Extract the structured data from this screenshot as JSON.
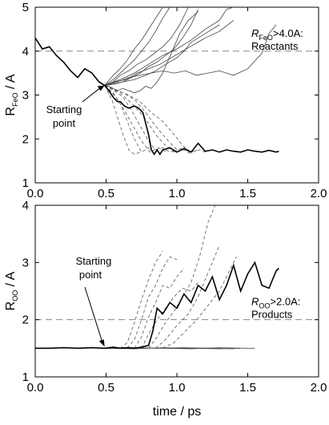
{
  "chart_data": [
    {
      "type": "line",
      "panel": "top",
      "xlabel": "",
      "ylabel": "R_FeO / A",
      "ylabel_main": "R",
      "ylabel_sub": "FeO",
      "ylabel_unit": " / A",
      "xlim": [
        0.0,
        2.0
      ],
      "ylim": [
        1,
        5
      ],
      "xticks": [
        0.0,
        0.5,
        1.0,
        1.5,
        2.0
      ],
      "xtick_labels": [
        "0.0",
        "0.5",
        "1.0",
        "1.5",
        "2.0"
      ],
      "yticks": [
        1,
        2,
        3,
        4,
        5
      ],
      "ytick_labels": [
        "1",
        "2",
        "3",
        "4",
        "5"
      ],
      "threshold": 4.0,
      "annotations": {
        "threshold_main": "R",
        "threshold_sub": "FeO",
        "threshold_rest": ">4.0A:",
        "threshold_line2": "Reactants",
        "start_line1": "Starting",
        "start_line2": "point",
        "start_point": [
          0.49,
          3.22
        ]
      },
      "main_series": {
        "style": "solid-bold",
        "x": [
          0.0,
          0.05,
          0.1,
          0.15,
          0.2,
          0.25,
          0.3,
          0.35,
          0.4,
          0.45,
          0.49,
          0.52,
          0.55,
          0.58,
          0.6,
          0.63,
          0.66,
          0.7,
          0.73,
          0.76,
          0.78,
          0.8,
          0.82,
          0.84,
          0.86,
          0.88,
          0.9,
          0.95,
          1.0,
          1.05,
          1.1,
          1.15,
          1.2,
          1.25,
          1.3,
          1.35,
          1.4,
          1.45,
          1.5,
          1.55,
          1.6,
          1.65,
          1.7,
          1.72
        ],
        "y": [
          4.3,
          4.05,
          4.1,
          3.9,
          3.75,
          3.55,
          3.4,
          3.6,
          3.5,
          3.3,
          3.22,
          3.1,
          2.95,
          2.85,
          2.85,
          2.75,
          2.7,
          2.75,
          2.7,
          2.6,
          2.35,
          2.1,
          1.75,
          1.65,
          1.75,
          1.65,
          1.75,
          1.8,
          1.7,
          1.78,
          1.7,
          1.9,
          1.72,
          1.75,
          1.7,
          1.75,
          1.72,
          1.7,
          1.75,
          1.72,
          1.7,
          1.74,
          1.7,
          1.72
        ]
      },
      "reactant_series": [
        {
          "x": [
            0.49,
            0.55,
            0.6,
            0.65,
            0.7,
            0.75,
            0.8,
            0.85,
            0.9,
            0.95
          ],
          "y": [
            3.22,
            3.35,
            3.5,
            3.65,
            3.8,
            4.0,
            4.2,
            4.45,
            4.75,
            5.0
          ]
        },
        {
          "x": [
            0.49,
            0.55,
            0.6,
            0.66,
            0.72,
            0.78,
            0.84,
            0.9,
            0.96,
            1.02,
            1.08
          ],
          "y": [
            3.22,
            3.3,
            3.45,
            3.55,
            3.7,
            3.8,
            3.95,
            4.1,
            4.3,
            4.6,
            5.0
          ]
        },
        {
          "x": [
            0.49,
            0.56,
            0.62,
            0.68,
            0.74,
            0.8,
            0.86,
            0.92,
            0.98,
            1.04,
            1.1,
            1.15
          ],
          "y": [
            3.22,
            3.25,
            3.3,
            3.4,
            3.5,
            3.65,
            3.75,
            3.9,
            4.05,
            4.3,
            4.6,
            4.95
          ]
        },
        {
          "x": [
            0.49,
            0.55,
            0.6,
            0.65,
            0.7,
            0.75,
            0.8,
            0.85,
            0.9
          ],
          "y": [
            3.22,
            3.45,
            3.6,
            3.8,
            4.05,
            4.25,
            4.5,
            4.75,
            5.0
          ]
        },
        {
          "x": [
            0.49,
            0.55,
            0.62,
            0.7,
            0.78,
            0.85,
            0.92,
            1.0,
            1.05,
            1.1,
            1.2,
            1.3
          ],
          "y": [
            3.22,
            3.25,
            3.3,
            3.35,
            3.45,
            3.55,
            3.7,
            3.85,
            4.0,
            4.2,
            4.4,
            4.6
          ]
        },
        {
          "x": [
            0.49,
            0.56,
            0.64,
            0.72,
            0.8,
            0.88,
            0.96,
            1.04,
            1.12,
            1.2,
            1.3,
            1.4
          ],
          "y": [
            3.22,
            3.3,
            3.35,
            3.5,
            3.6,
            3.7,
            3.85,
            4.0,
            4.15,
            4.3,
            4.45,
            4.7
          ]
        },
        {
          "x": [
            0.49,
            0.6,
            0.7,
            0.8,
            0.9,
            1.0,
            1.1,
            1.2,
            1.3,
            1.35,
            1.4
          ],
          "y": [
            3.22,
            3.35,
            3.5,
            3.7,
            3.9,
            4.05,
            4.25,
            4.5,
            4.7,
            4.95,
            5.0
          ]
        },
        {
          "x": [
            0.49,
            0.52,
            0.55,
            0.58,
            0.62,
            0.66,
            0.7,
            0.74,
            0.78,
            0.82,
            0.86,
            0.9,
            0.94,
            0.98,
            1.02,
            1.08,
            1.15
          ],
          "y": [
            3.22,
            3.2,
            3.15,
            3.1,
            3.15,
            3.1,
            3.05,
            3.1,
            3.2,
            3.15,
            3.3,
            3.5,
            3.8,
            4.1,
            4.4,
            4.7,
            4.9
          ]
        },
        {
          "x": [
            0.49,
            0.58,
            0.66,
            0.74,
            0.82,
            0.9,
            0.98,
            1.06,
            1.14,
            1.22,
            1.3,
            1.4,
            1.5,
            1.6,
            1.65,
            1.7
          ],
          "y": [
            3.22,
            3.3,
            3.4,
            3.45,
            3.5,
            3.55,
            3.5,
            3.55,
            3.45,
            3.5,
            3.55,
            3.45,
            3.6,
            3.95,
            4.4,
            4.6
          ]
        }
      ],
      "product_series": [
        {
          "x": [
            0.49,
            0.55,
            0.6,
            0.65,
            0.7,
            0.75,
            0.8,
            0.85
          ],
          "y": [
            3.22,
            3.05,
            2.8,
            2.4,
            2.0,
            1.7,
            1.8,
            1.65
          ]
        },
        {
          "x": [
            0.49,
            0.56,
            0.62,
            0.68,
            0.74,
            0.8,
            0.85,
            0.9,
            0.95,
            1.0
          ],
          "y": [
            3.22,
            3.1,
            2.95,
            2.65,
            2.3,
            1.95,
            1.75,
            1.8,
            1.7,
            1.75
          ]
        },
        {
          "x": [
            0.49,
            0.55,
            0.62,
            0.7,
            0.78,
            0.86,
            0.94,
            1.0,
            1.05,
            1.1,
            1.15
          ],
          "y": [
            3.22,
            3.15,
            3.05,
            2.9,
            2.6,
            2.25,
            1.95,
            1.75,
            1.8,
            1.7,
            1.75
          ]
        },
        {
          "x": [
            0.49,
            0.58,
            0.66,
            0.74,
            0.82,
            0.9,
            0.98,
            1.04,
            1.1,
            1.16,
            1.2
          ],
          "y": [
            3.22,
            3.1,
            3.0,
            2.85,
            2.6,
            2.4,
            2.1,
            1.85,
            1.7,
            1.75,
            1.7
          ]
        },
        {
          "x": [
            0.49,
            0.54,
            0.58,
            0.62,
            0.66,
            0.7,
            0.74
          ],
          "y": [
            3.22,
            2.9,
            2.5,
            2.1,
            1.75,
            1.65,
            1.7
          ]
        },
        {
          "x": [
            0.49,
            0.6,
            0.7,
            0.78,
            0.85,
            0.92,
            0.98,
            1.05,
            1.1
          ],
          "y": [
            3.22,
            3.05,
            2.75,
            2.45,
            2.1,
            1.85,
            1.7,
            1.75,
            1.65
          ]
        },
        {
          "x": [
            0.49,
            0.57,
            0.63,
            0.69,
            0.75,
            0.81,
            0.87,
            0.93
          ],
          "y": [
            3.22,
            2.95,
            2.65,
            2.3,
            1.95,
            1.7,
            1.8,
            1.7
          ]
        }
      ]
    },
    {
      "type": "line",
      "panel": "bottom",
      "xlabel": "time / ps",
      "ylabel": "R_OO / A",
      "ylabel_main": "R",
      "ylabel_sub": "OO",
      "ylabel_unit": " / A",
      "xlim": [
        0.0,
        2.0
      ],
      "ylim": [
        1,
        4
      ],
      "xticks": [
        0.0,
        0.5,
        1.0,
        1.5,
        2.0
      ],
      "xtick_labels": [
        "0.0",
        "0.5",
        "1.0",
        "1.5",
        "2.0"
      ],
      "yticks": [
        1,
        2,
        3,
        4
      ],
      "ytick_labels": [
        "1",
        "2",
        "3",
        "4"
      ],
      "threshold": 2.0,
      "annotations": {
        "threshold_main": "R",
        "threshold_sub": "OO",
        "threshold_rest": ">2.0A:",
        "threshold_line2": "Products",
        "start_line1": "Starting",
        "start_line2": "point",
        "start_point": [
          0.49,
          1.5
        ]
      },
      "main_series": {
        "style": "solid-bold",
        "x": [
          0.0,
          0.1,
          0.2,
          0.3,
          0.4,
          0.49,
          0.55,
          0.6,
          0.65,
          0.7,
          0.75,
          0.8,
          0.83,
          0.86,
          0.9,
          0.95,
          1.0,
          1.05,
          1.1,
          1.15,
          1.2,
          1.25,
          1.3,
          1.35,
          1.4,
          1.45,
          1.5,
          1.55,
          1.6,
          1.65,
          1.7,
          1.72
        ],
        "y": [
          1.5,
          1.5,
          1.51,
          1.5,
          1.51,
          1.5,
          1.52,
          1.5,
          1.51,
          1.5,
          1.52,
          1.55,
          1.8,
          2.2,
          2.1,
          2.3,
          2.2,
          2.45,
          2.3,
          2.6,
          2.5,
          2.75,
          2.35,
          2.6,
          2.95,
          2.5,
          2.8,
          3.0,
          2.6,
          2.55,
          2.85,
          2.9
        ]
      },
      "product_series": [
        {
          "x": [
            0.6,
            0.65,
            0.7,
            0.75,
            0.8,
            0.85,
            0.9
          ],
          "y": [
            1.5,
            1.6,
            1.95,
            2.35,
            2.7,
            3.0,
            3.2
          ]
        },
        {
          "x": [
            0.65,
            0.7,
            0.75,
            0.8,
            0.85,
            0.9,
            0.95,
            1.0
          ],
          "y": [
            1.5,
            1.65,
            2.0,
            2.4,
            2.6,
            2.9,
            3.1,
            3.05
          ]
        },
        {
          "x": [
            0.7,
            0.75,
            0.8,
            0.85,
            0.9,
            0.95,
            1.0,
            1.05
          ],
          "y": [
            1.5,
            1.7,
            2.05,
            2.3,
            2.6,
            2.55,
            2.75,
            2.9
          ]
        },
        {
          "x": [
            0.75,
            0.8,
            0.86,
            0.92,
            0.98,
            1.04,
            1.1,
            1.15
          ],
          "y": [
            1.5,
            1.75,
            2.0,
            2.2,
            2.4,
            2.55,
            2.5,
            2.65
          ]
        },
        {
          "x": [
            0.8,
            0.86,
            0.92,
            0.98,
            1.04,
            1.1,
            1.16,
            1.22,
            1.27
          ],
          "y": [
            1.5,
            1.7,
            1.95,
            2.15,
            2.4,
            2.65,
            3.1,
            3.7,
            4.0
          ]
        },
        {
          "x": [
            0.85,
            0.92,
            1.0,
            1.08,
            1.15,
            1.2,
            1.25,
            1.3
          ],
          "y": [
            1.5,
            1.65,
            1.9,
            2.1,
            2.4,
            2.7,
            3.0,
            3.3
          ]
        },
        {
          "x": [
            0.9,
            0.98,
            1.06,
            1.14,
            1.22,
            1.3,
            1.36,
            1.42
          ],
          "y": [
            1.5,
            1.6,
            1.8,
            2.0,
            2.25,
            2.5,
            2.8,
            3.1
          ]
        }
      ],
      "reactant_series": [
        {
          "x": [
            0.49,
            0.7,
            0.9,
            1.1,
            1.3,
            1.5,
            1.55
          ],
          "y": [
            1.5,
            1.51,
            1.5,
            1.49,
            1.51,
            1.5,
            1.5
          ]
        },
        {
          "x": [
            0.49,
            0.7,
            0.9,
            1.1,
            1.3,
            1.45
          ],
          "y": [
            1.5,
            1.49,
            1.51,
            1.5,
            1.49,
            1.5
          ]
        },
        {
          "x": [
            0.49,
            0.65,
            0.85,
            1.05,
            1.25,
            1.4
          ],
          "y": [
            1.5,
            1.51,
            1.5,
            1.51,
            1.5,
            1.49
          ]
        }
      ]
    }
  ]
}
